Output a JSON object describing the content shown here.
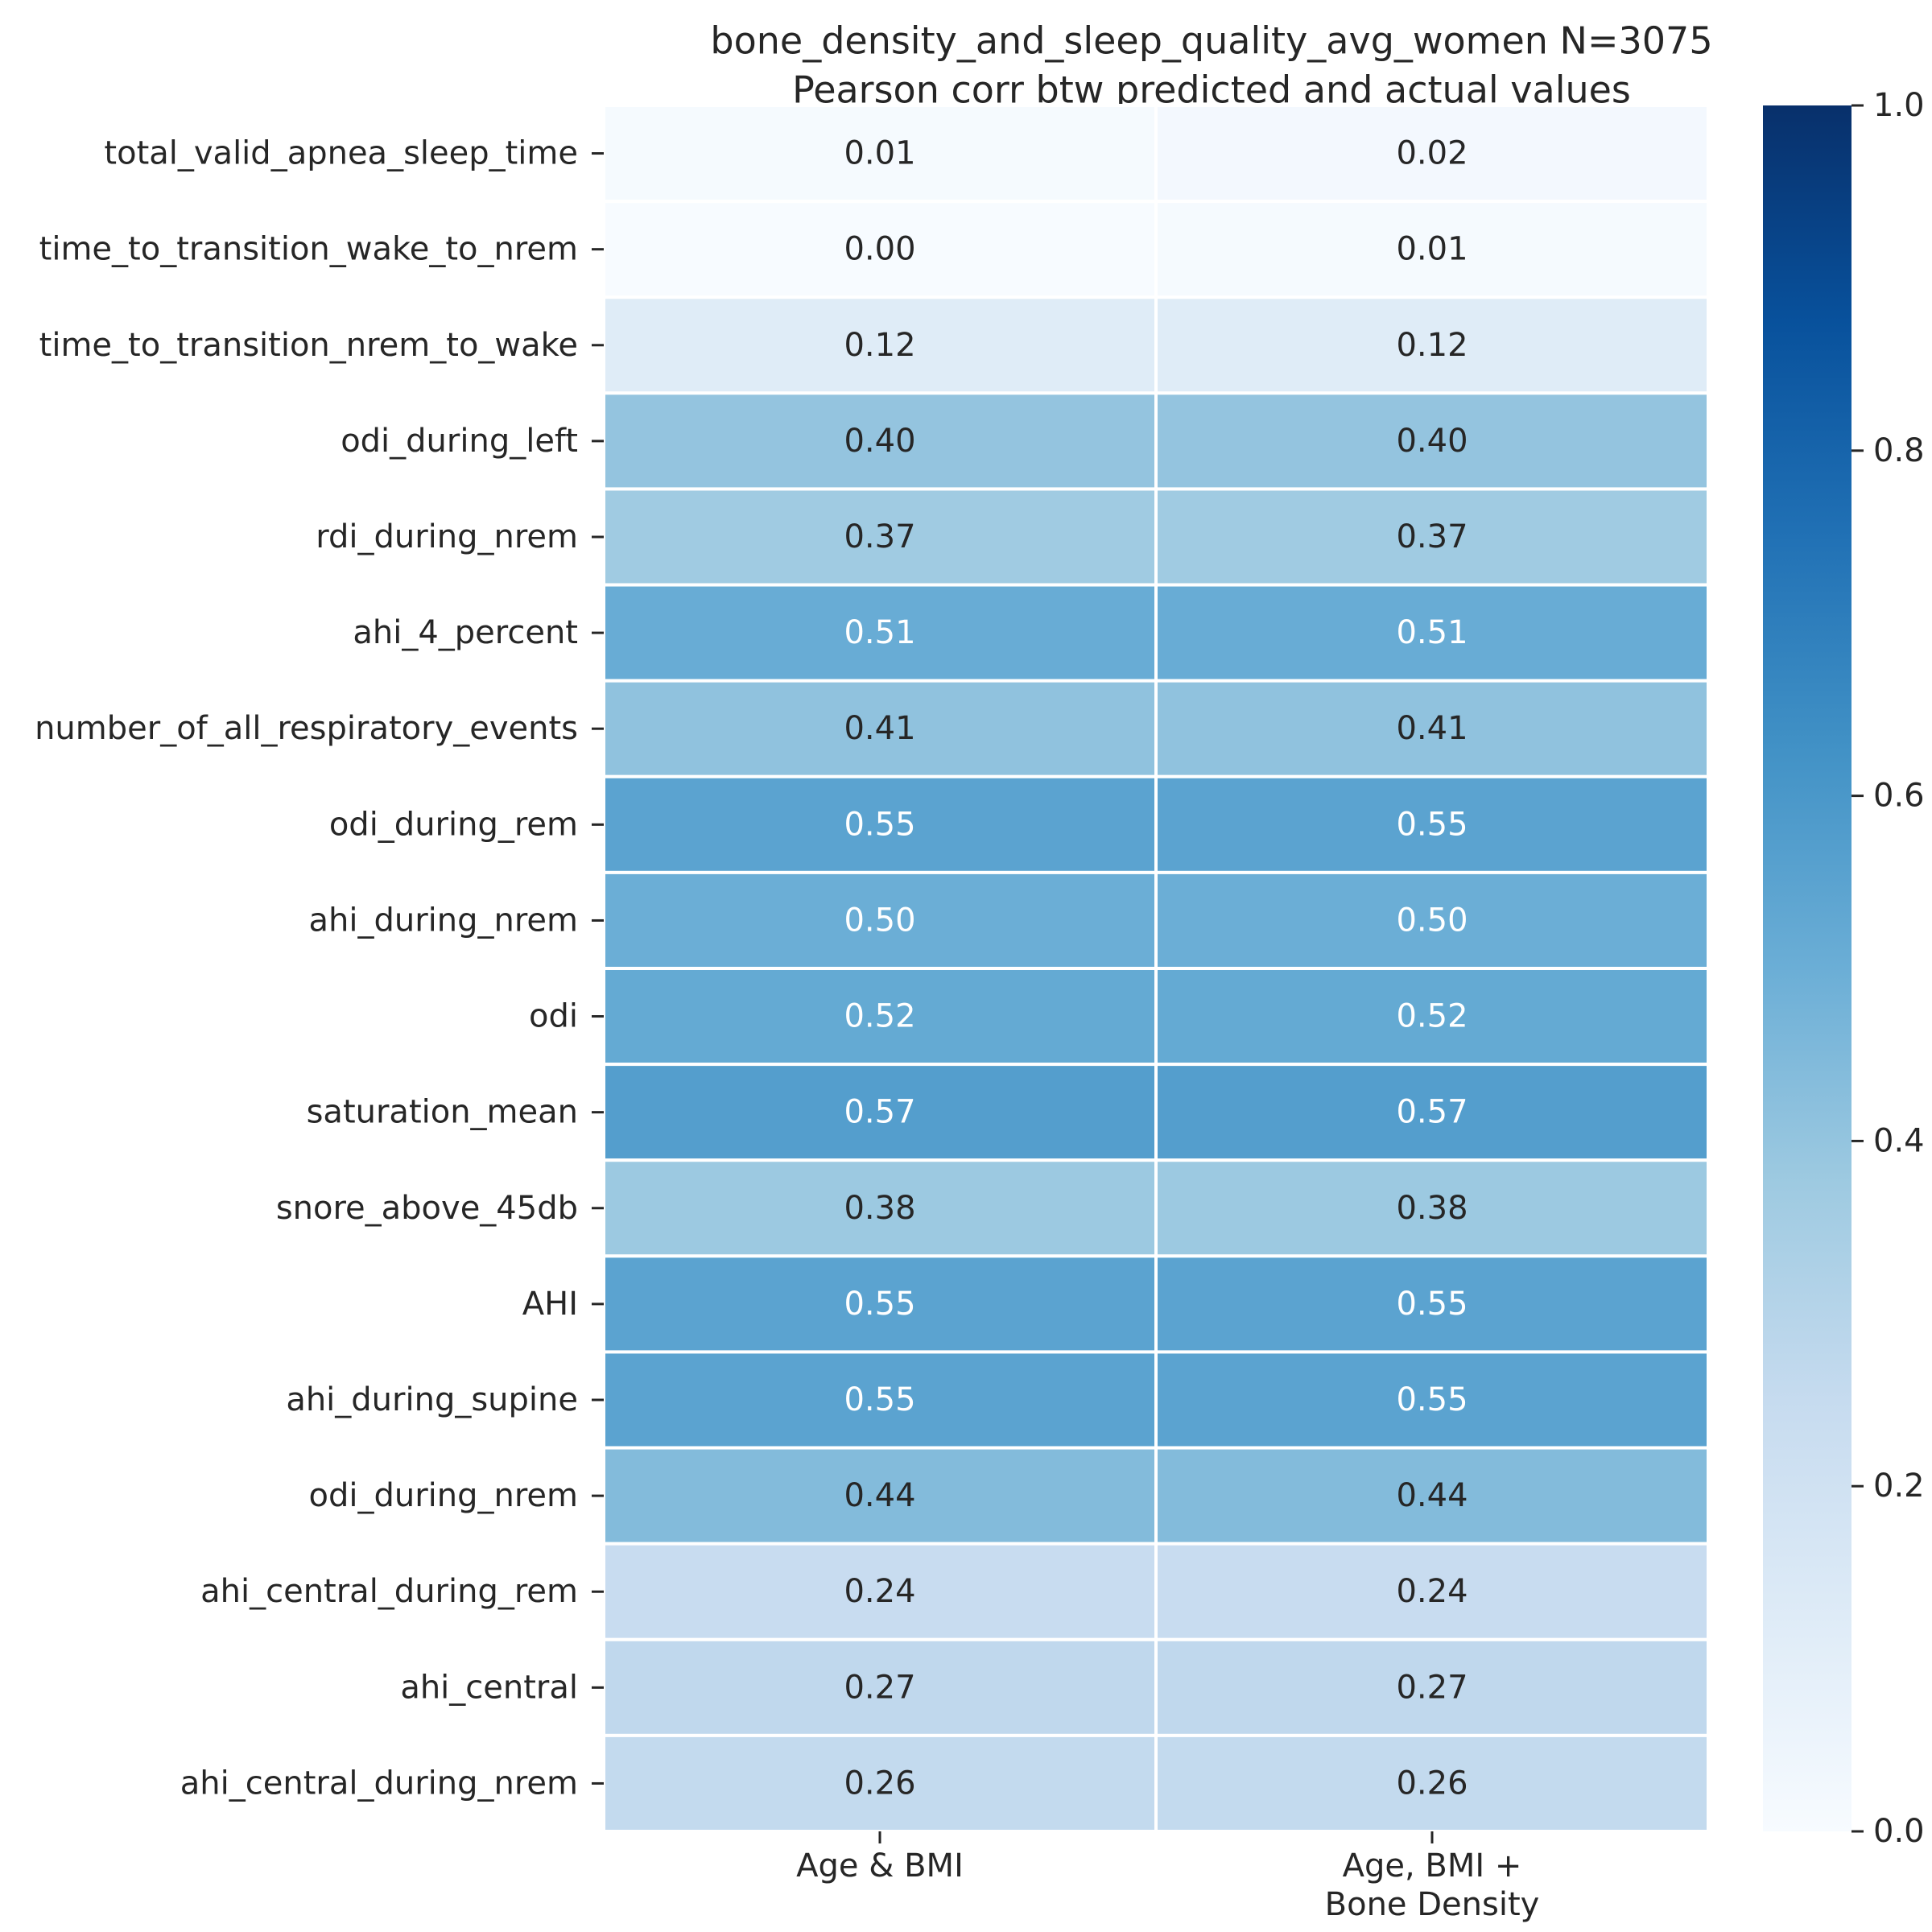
{
  "chart_data": {
    "type": "heatmap",
    "title_lines": [
      "bone_density_and_sleep_quality_avg_women N=3075",
      "Pearson corr btw predicted and actual values"
    ],
    "columns": [
      [
        "Age & BMI"
      ],
      [
        "Age, BMI +",
        "Bone Density"
      ]
    ],
    "rows": [
      "total_valid_apnea_sleep_time",
      "time_to_transition_wake_to_nrem",
      "time_to_transition_nrem_to_wake",
      "odi_during_left",
      "rdi_during_nrem",
      "ahi_4_percent",
      "number_of_all_respiratory_events",
      "odi_during_rem",
      "ahi_during_nrem",
      "odi",
      "saturation_mean",
      "snore_above_45db",
      "AHI",
      "ahi_during_supine",
      "odi_during_nrem",
      "ahi_central_during_rem",
      "ahi_central",
      "ahi_central_during_nrem"
    ],
    "values": [
      [
        0.01,
        0.02
      ],
      [
        0.0,
        0.01
      ],
      [
        0.12,
        0.12
      ],
      [
        0.4,
        0.4
      ],
      [
        0.37,
        0.37
      ],
      [
        0.51,
        0.51
      ],
      [
        0.41,
        0.41
      ],
      [
        0.55,
        0.55
      ],
      [
        0.5,
        0.5
      ],
      [
        0.52,
        0.52
      ],
      [
        0.57,
        0.57
      ],
      [
        0.38,
        0.38
      ],
      [
        0.55,
        0.55
      ],
      [
        0.55,
        0.55
      ],
      [
        0.44,
        0.44
      ],
      [
        0.24,
        0.24
      ],
      [
        0.27,
        0.27
      ],
      [
        0.26,
        0.26
      ]
    ],
    "value_labels": [
      [
        "0.01",
        "0.02"
      ],
      [
        "0.00",
        "0.01"
      ],
      [
        "0.12",
        "0.12"
      ],
      [
        "0.40",
        "0.40"
      ],
      [
        "0.37",
        "0.37"
      ],
      [
        "0.51",
        "0.51"
      ],
      [
        "0.41",
        "0.41"
      ],
      [
        "0.55",
        "0.55"
      ],
      [
        "0.50",
        "0.50"
      ],
      [
        "0.52",
        "0.52"
      ],
      [
        "0.57",
        "0.57"
      ],
      [
        "0.38",
        "0.38"
      ],
      [
        "0.55",
        "0.55"
      ],
      [
        "0.55",
        "0.55"
      ],
      [
        "0.44",
        "0.44"
      ],
      [
        "0.24",
        "0.24"
      ],
      [
        "0.27",
        "0.27"
      ],
      [
        "0.26",
        "0.26"
      ]
    ],
    "colorbar": {
      "colormap": "Blues",
      "range": [
        0.0,
        1.0
      ],
      "ticks": [
        0.0,
        0.2,
        0.4,
        0.6,
        0.8,
        1.0
      ],
      "tick_labels": [
        "0.0",
        "0.2",
        "0.4",
        "0.6",
        "0.8",
        "1.0"
      ]
    },
    "colors": {
      "blues": [
        "#f7fbff",
        "#deebf7",
        "#c6dbef",
        "#9ecae1",
        "#6baed6",
        "#4292c6",
        "#2171b5",
        "#08519c",
        "#08306b"
      ],
      "cell_border": "#ffffff",
      "text_dark": "#262626",
      "text_light": "#ffffff"
    },
    "annotation_text_threshold": 0.48
  }
}
